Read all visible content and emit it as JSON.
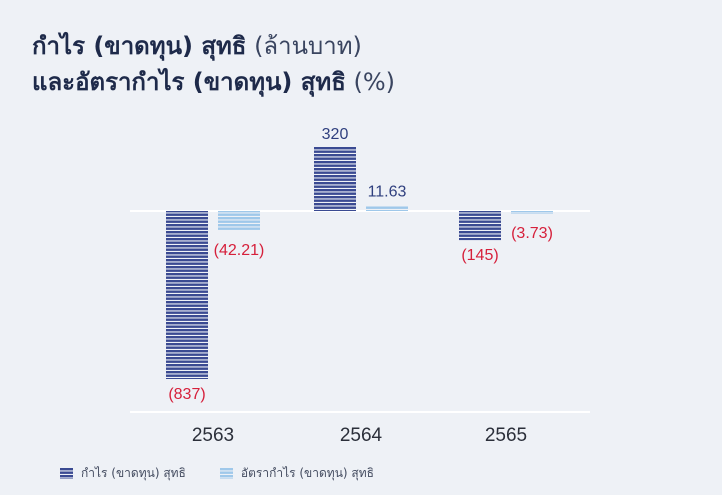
{
  "header": {
    "title_line1_bold": "กำไร (ขาดทุน) สุทธิ",
    "title_line1_light": " (ล้านบาท)",
    "title_line2_bold": "และอัตรากำไร (ขาดทุน) สุทธิ",
    "title_line2_light": " (%)"
  },
  "colors": {
    "profit": "#3a4a92",
    "margin": "#9fc8ea",
    "negative_label": "#d6203b",
    "positive_label": "#2f3f7e",
    "baseline": "#ffffff"
  },
  "chart_data": {
    "type": "bar",
    "categories": [
      "2563",
      "2564",
      "2565"
    ],
    "series": [
      {
        "name": "กำไร (ขาดทุน) สุทธิ",
        "values": [
          -837,
          320,
          -145
        ],
        "labels": [
          "(837)",
          "320",
          "(145)"
        ]
      },
      {
        "name": "อัตรากำไร (ขาดทุน) สุทธิ",
        "values": [
          -42.21,
          11.63,
          -3.73
        ],
        "labels": [
          "(42.21)",
          "11.63",
          "(3.73)"
        ]
      }
    ],
    "legend_position": "bottom-left",
    "grid": false
  }
}
